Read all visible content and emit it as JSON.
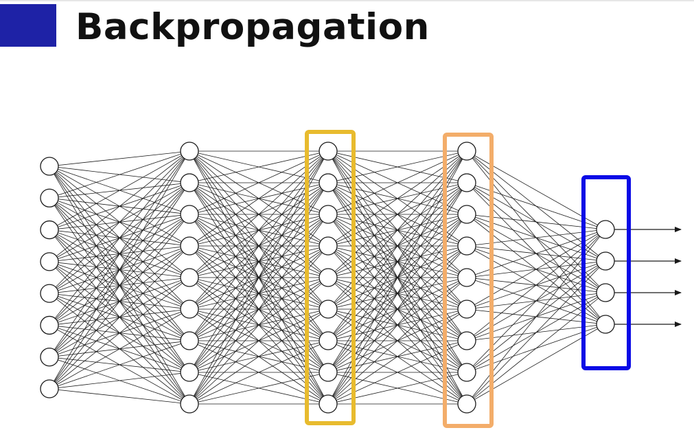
{
  "slide": {
    "title": "Backpropagation"
  },
  "colors": {
    "accent_block": "#1e22a6",
    "layer2_highlight": "#e8bb2e",
    "layer3_highlight": "#f3ad6a",
    "output_highlight": "#0a0ae6",
    "edges": "#1a1a1a",
    "nodes_stroke": "#1a1a1a",
    "nodes_fill": "#ffffff"
  },
  "network": {
    "layers": [
      {
        "name": "input-layer",
        "nodes": 8,
        "highlight": ""
      },
      {
        "name": "hidden-layer-1",
        "nodes": 9,
        "highlight": ""
      },
      {
        "name": "hidden-layer-2",
        "nodes": 9,
        "highlight": "layer2_highlight"
      },
      {
        "name": "hidden-layer-3",
        "nodes": 9,
        "highlight": "layer3_highlight"
      },
      {
        "name": "output-layer",
        "nodes": 4,
        "highlight": "output_highlight"
      }
    ],
    "connections": "fully-connected",
    "output_arrows": 4
  }
}
